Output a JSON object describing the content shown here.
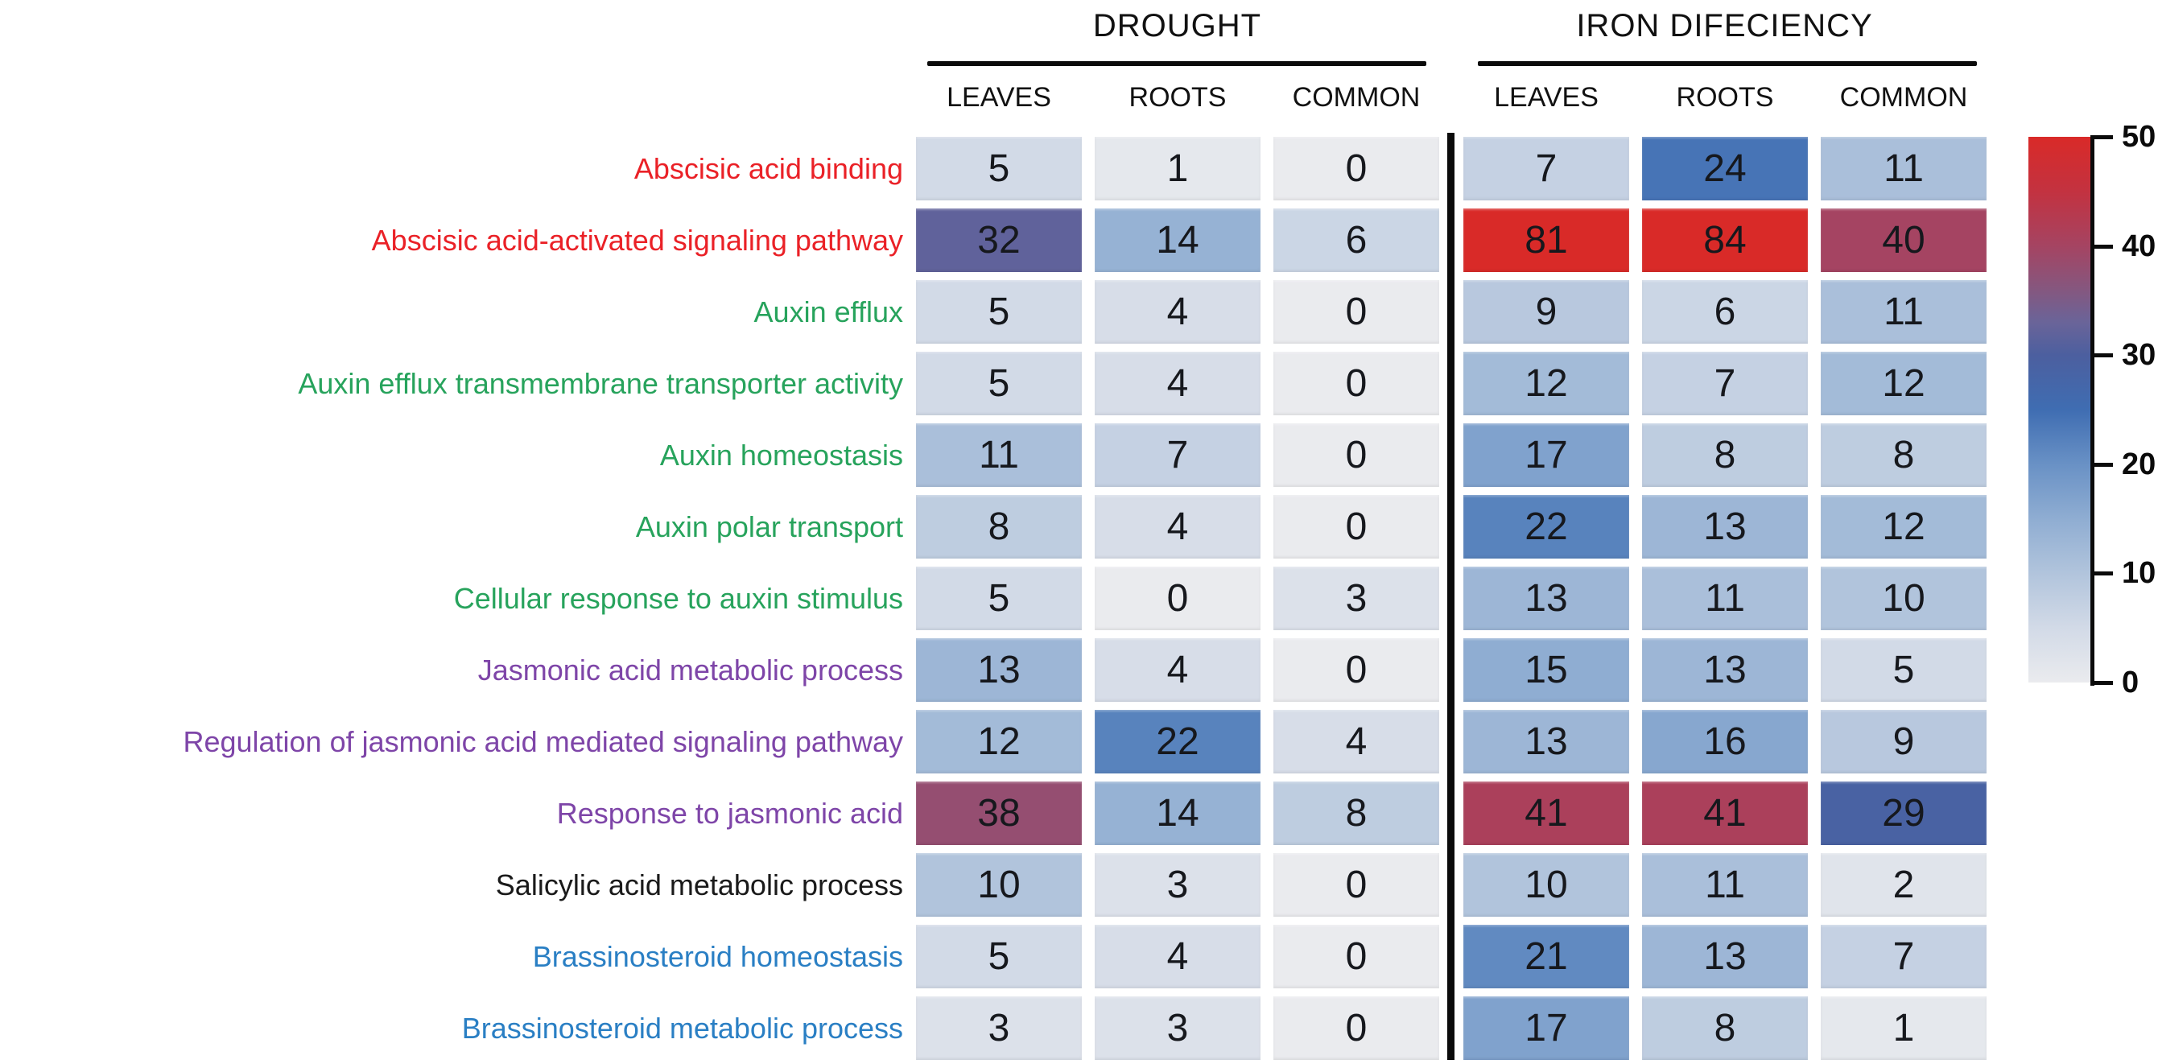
{
  "chart_data": {
    "type": "heatmap",
    "groups": [
      {
        "title": "DROUGHT",
        "columns": [
          "LEAVES",
          "ROOTS",
          "COMMON"
        ]
      },
      {
        "title": "IRON DIFECIENCY",
        "columns": [
          "LEAVES",
          "ROOTS",
          "COMMON"
        ]
      }
    ],
    "rows": [
      {
        "label": "Abscisic acid binding",
        "label_color": "#ea2127",
        "drought": [
          5,
          1,
          0
        ],
        "iron": [
          7,
          24,
          11
        ]
      },
      {
        "label": "Abscisic acid-activated signaling pathway",
        "label_color": "#ea2127",
        "drought": [
          32,
          14,
          6
        ],
        "iron": [
          81,
          84,
          40
        ]
      },
      {
        "label": "Auxin efflux",
        "label_color": "#27a35c",
        "drought": [
          5,
          4,
          0
        ],
        "iron": [
          9,
          6,
          11
        ]
      },
      {
        "label": "Auxin efflux transmembrane transporter activity",
        "label_color": "#27a35c",
        "drought": [
          5,
          4,
          0
        ],
        "iron": [
          12,
          7,
          12
        ]
      },
      {
        "label": "Auxin homeostasis",
        "label_color": "#27a35c",
        "drought": [
          11,
          7,
          0
        ],
        "iron": [
          17,
          8,
          8
        ]
      },
      {
        "label": "Auxin polar transport",
        "label_color": "#27a35c",
        "drought": [
          8,
          4,
          0
        ],
        "iron": [
          22,
          13,
          12
        ]
      },
      {
        "label": "Cellular response to auxin stimulus",
        "label_color": "#27a35c",
        "drought": [
          5,
          0,
          3
        ],
        "iron": [
          13,
          11,
          10
        ]
      },
      {
        "label": "Jasmonic acid metabolic process",
        "label_color": "#7e45a8",
        "drought": [
          13,
          4,
          0
        ],
        "iron": [
          15,
          13,
          5
        ]
      },
      {
        "label": "Regulation of jasmonic acid mediated signaling pathway",
        "label_color": "#7e45a8",
        "drought": [
          12,
          22,
          4
        ],
        "iron": [
          13,
          16,
          9
        ]
      },
      {
        "label": "Response to jasmonic acid",
        "label_color": "#7e45a8",
        "drought": [
          38,
          14,
          8
        ],
        "iron": [
          41,
          41,
          29
        ]
      },
      {
        "label": "Salicylic acid metabolic process",
        "label_color": "#1a1a1a",
        "drought": [
          10,
          3,
          0
        ],
        "iron": [
          10,
          11,
          2
        ]
      },
      {
        "label": "Brassinosteroid homeostasis",
        "label_color": "#2a7fc4",
        "drought": [
          5,
          4,
          0
        ],
        "iron": [
          21,
          13,
          7
        ]
      },
      {
        "label": "Brassinosteroid metabolic process",
        "label_color": "#2a7fc4",
        "drought": [
          3,
          3,
          0
        ],
        "iron": [
          17,
          8,
          1
        ]
      }
    ],
    "colorbar": {
      "min": 0,
      "max": 50,
      "ticks": [
        0,
        10,
        20,
        30,
        40,
        50
      ]
    },
    "colormap_stops": [
      [
        0,
        "#eaebee"
      ],
      [
        5,
        "#d2dae7"
      ],
      [
        10,
        "#b1c4dc"
      ],
      [
        15,
        "#8fadd2"
      ],
      [
        20,
        "#6991c5"
      ],
      [
        25,
        "#3f6db2"
      ],
      [
        30,
        "#4c5f9f"
      ],
      [
        33,
        "#6a6499"
      ],
      [
        36,
        "#85577f"
      ],
      [
        40,
        "#a54462"
      ],
      [
        45,
        "#c33240"
      ],
      [
        50,
        "#d92a28"
      ]
    ],
    "legend_position": "right",
    "grid": false
  }
}
